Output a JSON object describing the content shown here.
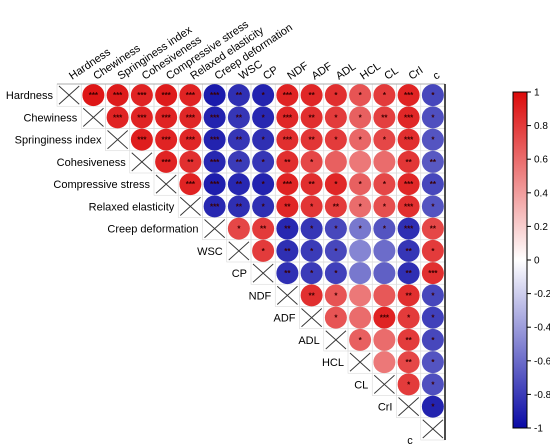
{
  "chart_data": {
    "type": "heatmap",
    "style": "upper-triangle correlation matrix with circles; crossed diagonal",
    "variables": [
      "Hardness",
      "Chewiness",
      "Springiness index",
      "Cohesiveness",
      "Compressive stress",
      "Relaxed elasticity",
      "Creep deformation",
      "WSC",
      "CP",
      "NDF",
      "ADF",
      "ADL",
      "HCL",
      "CL",
      "CrI",
      "c"
    ],
    "colorbar": {
      "range": [
        -1,
        1
      ],
      "ticks": [
        "1",
        "0.8",
        "0.6",
        "0.4",
        "0.2",
        "0",
        "-0.2",
        "-0.4",
        "-0.6",
        "-0.8",
        "-1"
      ],
      "low_color": "#0a0aa6",
      "mid_color": "#ffffff",
      "high_color": "#dc0a0a"
    },
    "matrix": [
      [
        null,
        0.95,
        0.93,
        0.9,
        0.93,
        0.9,
        -0.93,
        -0.85,
        -0.9,
        0.9,
        0.88,
        0.85,
        0.7,
        0.8,
        0.9,
        -0.75
      ],
      [
        null,
        null,
        0.9,
        0.9,
        0.9,
        0.88,
        -0.9,
        -0.82,
        -0.88,
        0.88,
        0.85,
        0.8,
        0.65,
        0.78,
        0.88,
        -0.72
      ],
      [
        null,
        null,
        null,
        0.92,
        0.9,
        0.88,
        -0.9,
        -0.82,
        -0.85,
        0.85,
        0.82,
        0.8,
        0.62,
        0.75,
        0.85,
        -0.7
      ],
      [
        null,
        null,
        null,
        null,
        0.9,
        0.85,
        -0.88,
        -0.8,
        -0.82,
        0.85,
        0.75,
        0.65,
        0.55,
        0.6,
        0.82,
        -0.68
      ],
      [
        null,
        null,
        null,
        null,
        null,
        0.9,
        -0.92,
        -0.88,
        -0.9,
        0.9,
        0.85,
        0.88,
        0.65,
        0.75,
        0.88,
        -0.75
      ],
      [
        null,
        null,
        null,
        null,
        null,
        null,
        -0.88,
        -0.85,
        -0.85,
        0.88,
        0.82,
        0.8,
        0.6,
        0.72,
        0.85,
        -0.7
      ],
      [
        null,
        null,
        null,
        null,
        null,
        null,
        null,
        0.75,
        0.8,
        -0.88,
        -0.82,
        -0.75,
        -0.55,
        -0.7,
        -0.85,
        0.75
      ],
      [
        null,
        null,
        null,
        null,
        null,
        null,
        null,
        null,
        0.8,
        -0.85,
        -0.8,
        -0.75,
        -0.5,
        -0.6,
        -0.82,
        0.8
      ],
      [
        null,
        null,
        null,
        null,
        null,
        null,
        null,
        null,
        null,
        -0.85,
        -0.8,
        -0.78,
        -0.55,
        -0.65,
        -0.85,
        0.85
      ],
      [
        null,
        null,
        null,
        null,
        null,
        null,
        null,
        null,
        null,
        null,
        0.85,
        0.7,
        0.55,
        0.68,
        0.85,
        -0.75
      ],
      [
        null,
        null,
        null,
        null,
        null,
        null,
        null,
        null,
        null,
        null,
        null,
        0.7,
        0.6,
        0.9,
        0.8,
        -0.78
      ],
      [
        null,
        null,
        null,
        null,
        null,
        null,
        null,
        null,
        null,
        null,
        null,
        null,
        0.65,
        0.6,
        0.8,
        -0.75
      ],
      [
        null,
        null,
        null,
        null,
        null,
        null,
        null,
        null,
        null,
        null,
        null,
        null,
        null,
        0.55,
        0.75,
        -0.7
      ],
      [
        null,
        null,
        null,
        null,
        null,
        null,
        null,
        null,
        null,
        null,
        null,
        null,
        null,
        null,
        0.8,
        -0.72
      ],
      [
        null,
        null,
        null,
        null,
        null,
        null,
        null,
        null,
        null,
        null,
        null,
        null,
        null,
        null,
        null,
        -0.9
      ],
      [
        null,
        null,
        null,
        null,
        null,
        null,
        null,
        null,
        null,
        null,
        null,
        null,
        null,
        null,
        null,
        null
      ]
    ],
    "significance": [
      [
        "",
        "***",
        "***",
        "***",
        "***",
        "***",
        "***",
        "**",
        "*",
        "***",
        "**",
        "*",
        "*",
        "*",
        "***",
        "*"
      ],
      [
        "",
        "",
        "***",
        "***",
        "***",
        "***",
        "***",
        "**",
        "*",
        "***",
        "**",
        "*",
        "*",
        "**",
        "***",
        "*"
      ],
      [
        "",
        "",
        "",
        "***",
        "***",
        "***",
        "***",
        "**",
        "*",
        "***",
        "**",
        "*",
        "*",
        "*",
        "***",
        "*"
      ],
      [
        "",
        "",
        "",
        "",
        "***",
        "**",
        "***",
        "**",
        "*",
        "**",
        "*",
        "",
        "",
        "",
        "**",
        "**"
      ],
      [
        "",
        "",
        "",
        "",
        "",
        "***",
        "***",
        "**",
        "*",
        "***",
        "**",
        "*",
        "*",
        "*",
        "***",
        "**"
      ],
      [
        "",
        "",
        "",
        "",
        "",
        "",
        "***",
        "**",
        "*",
        "**",
        "*",
        "**",
        "*",
        "*",
        "***",
        "*"
      ],
      [
        "",
        "",
        "",
        "",
        "",
        "",
        "",
        "*",
        "**",
        "**",
        "*",
        "*",
        "*",
        "*",
        "***",
        "**"
      ],
      [
        "",
        "",
        "",
        "",
        "",
        "",
        "",
        "",
        "*",
        "**",
        "*",
        "*",
        "",
        "",
        "**",
        "*"
      ],
      [
        "",
        "",
        "",
        "",
        "",
        "",
        "",
        "",
        "",
        "**",
        "*",
        "*",
        "",
        "",
        "**",
        "***"
      ],
      [
        "",
        "",
        "",
        "",
        "",
        "",
        "",
        "",
        "",
        "",
        "**",
        "*",
        "",
        "",
        "**",
        "*"
      ],
      [
        "",
        "",
        "",
        "",
        "",
        "",
        "",
        "",
        "",
        "",
        "",
        "*",
        "",
        "***",
        "*",
        "*"
      ],
      [
        "",
        "",
        "",
        "",
        "",
        "",
        "",
        "",
        "",
        "",
        "",
        "",
        "*",
        "",
        "**",
        "*"
      ],
      [
        "",
        "",
        "",
        "",
        "",
        "",
        "",
        "",
        "",
        "",
        "",
        "",
        "",
        "",
        "**",
        "*"
      ],
      [
        "",
        "",
        "",
        "",
        "",
        "",
        "",
        "",
        "",
        "",
        "",
        "",
        "",
        "",
        "*",
        "*"
      ],
      [
        "",
        "",
        "",
        "",
        "",
        "",
        "",
        "",
        "",
        "",
        "",
        "",
        "",
        "",
        "",
        "*"
      ],
      [
        "",
        "",
        "",
        "",
        "",
        "",
        "",
        "",
        "",
        "",
        "",
        "",
        "",
        "",
        "",
        ""
      ]
    ]
  }
}
